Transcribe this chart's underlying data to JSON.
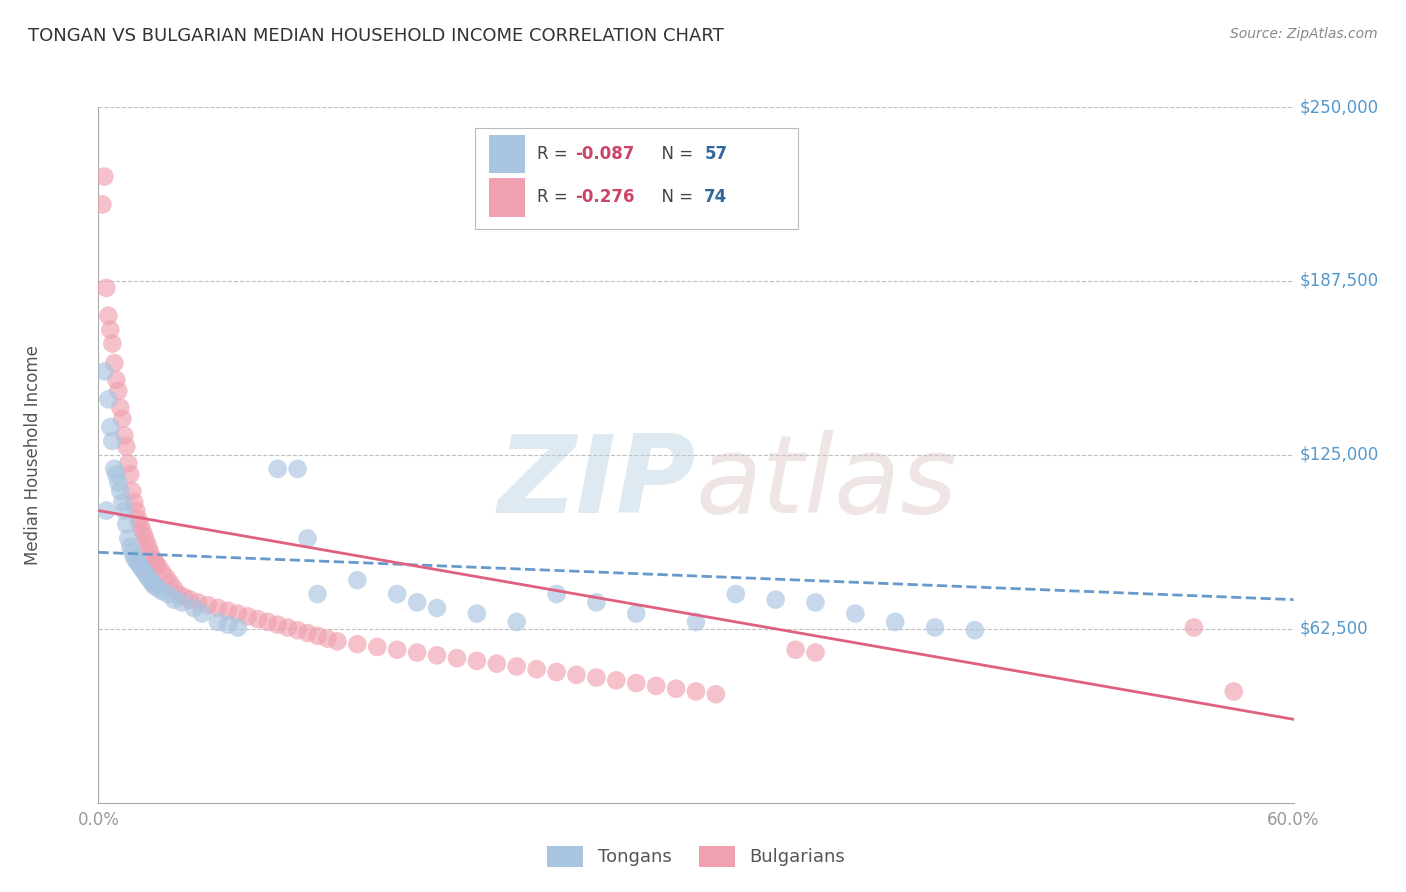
{
  "title": "TONGAN VS BULGARIAN MEDIAN HOUSEHOLD INCOME CORRELATION CHART",
  "source": "Source: ZipAtlas.com",
  "ylabel": "Median Household Income",
  "xlim": [
    0.0,
    0.6
  ],
  "ylim": [
    0,
    250000
  ],
  "yticks": [
    0,
    62500,
    125000,
    187500,
    250000
  ],
  "ytick_labels": [
    "",
    "$62,500",
    "$125,000",
    "$187,500",
    "$250,000"
  ],
  "xticks": [
    0.0,
    0.1,
    0.2,
    0.3,
    0.4,
    0.5,
    0.6
  ],
  "xtick_labels": [
    "0.0%",
    "",
    "",
    "",
    "",
    "",
    "60.0%"
  ],
  "tongan_R": -0.087,
  "tongan_N": 57,
  "bulgarian_R": -0.276,
  "bulgarian_N": 74,
  "tongan_color": "#a8c4e0",
  "bulgarian_color": "#f0a0b0",
  "tongan_line_color": "#6699cc",
  "bulgarian_line_color": "#e06080",
  "background_color": "#ffffff",
  "grid_color": "#c0c0c0",
  "title_color": "#333333",
  "axis_color": "#aaaaaa",
  "ytick_color": "#5599cc",
  "xtick_color": "#999999",
  "legend_R_color": "#cc4466",
  "legend_N_color": "#336699",
  "tongan_x": [
    0.003,
    0.004,
    0.005,
    0.006,
    0.007,
    0.008,
    0.009,
    0.01,
    0.011,
    0.012,
    0.013,
    0.014,
    0.015,
    0.016,
    0.017,
    0.018,
    0.019,
    0.02,
    0.021,
    0.022,
    0.023,
    0.024,
    0.025,
    0.026,
    0.027,
    0.028,
    0.03,
    0.032,
    0.035,
    0.038,
    0.042,
    0.048,
    0.052,
    0.06,
    0.065,
    0.07,
    0.09,
    0.1,
    0.105,
    0.11,
    0.13,
    0.15,
    0.16,
    0.17,
    0.19,
    0.21,
    0.23,
    0.25,
    0.27,
    0.3,
    0.32,
    0.34,
    0.36,
    0.38,
    0.4,
    0.42,
    0.44
  ],
  "tongan_y": [
    155000,
    105000,
    145000,
    135000,
    130000,
    120000,
    118000,
    115000,
    112000,
    108000,
    105000,
    100000,
    95000,
    92000,
    90000,
    88000,
    87000,
    86000,
    85000,
    84000,
    83000,
    82000,
    81000,
    80000,
    79000,
    78000,
    77000,
    76000,
    75000,
    73000,
    72000,
    70000,
    68000,
    65000,
    64000,
    63000,
    120000,
    120000,
    95000,
    75000,
    80000,
    75000,
    72000,
    70000,
    68000,
    65000,
    75000,
    72000,
    68000,
    65000,
    75000,
    73000,
    72000,
    68000,
    65000,
    63000,
    62000
  ],
  "bulgarian_x": [
    0.002,
    0.003,
    0.004,
    0.005,
    0.006,
    0.007,
    0.008,
    0.009,
    0.01,
    0.011,
    0.012,
    0.013,
    0.014,
    0.015,
    0.016,
    0.017,
    0.018,
    0.019,
    0.02,
    0.021,
    0.022,
    0.023,
    0.024,
    0.025,
    0.026,
    0.027,
    0.028,
    0.029,
    0.03,
    0.032,
    0.034,
    0.036,
    0.038,
    0.04,
    0.043,
    0.046,
    0.05,
    0.055,
    0.06,
    0.065,
    0.07,
    0.075,
    0.08,
    0.085,
    0.09,
    0.095,
    0.1,
    0.105,
    0.11,
    0.115,
    0.12,
    0.13,
    0.14,
    0.15,
    0.16,
    0.17,
    0.18,
    0.19,
    0.2,
    0.21,
    0.22,
    0.23,
    0.24,
    0.25,
    0.26,
    0.27,
    0.28,
    0.29,
    0.3,
    0.31,
    0.35,
    0.36,
    0.55,
    0.57
  ],
  "bulgarian_y": [
    215000,
    225000,
    185000,
    175000,
    170000,
    165000,
    158000,
    152000,
    148000,
    142000,
    138000,
    132000,
    128000,
    122000,
    118000,
    112000,
    108000,
    105000,
    102000,
    100000,
    98000,
    96000,
    94000,
    92000,
    90000,
    88000,
    87000,
    86000,
    85000,
    83000,
    81000,
    79000,
    77000,
    75000,
    74000,
    73000,
    72000,
    71000,
    70000,
    69000,
    68000,
    67000,
    66000,
    65000,
    64000,
    63000,
    62000,
    61000,
    60000,
    59000,
    58000,
    57000,
    56000,
    55000,
    54000,
    53000,
    52000,
    51000,
    50000,
    49000,
    48000,
    47000,
    46000,
    45000,
    44000,
    43000,
    42000,
    41000,
    40000,
    39000,
    55000,
    54000,
    63000,
    40000
  ],
  "tongan_trend_x": [
    0.0,
    0.6
  ],
  "tongan_trend_y": [
    90000,
    73000
  ],
  "bulgarian_trend_x": [
    0.0,
    0.6
  ],
  "bulgarian_trend_y": [
    105000,
    30000
  ]
}
